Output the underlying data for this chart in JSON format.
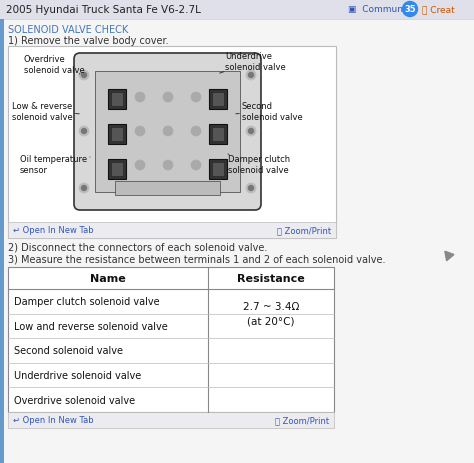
{
  "bg_color": "#f5f5f5",
  "header_bg": "#e8e8f0",
  "header_text": "2005 Hyundai Truck Santa Fe V6-2.7L",
  "section_title": "SOLENOID VALVE CHECK",
  "section_title_color": "#4477bb",
  "step1_text": "1) Remove the valve body cover.",
  "step2_text": "2) Disconnect the connectors of each solenoid valve.",
  "step3_text": "3) Measure the resistance between terminals 1 and 2 of each solenoid valve.",
  "table_names": [
    "Damper clutch solenoid valve",
    "Low and reverse solenoid valve",
    "Second solenoid valve",
    "Underdrive solenoid valve",
    "Overdrive solenoid valve"
  ],
  "table_resistance_line1": "2.7 ~ 3.4Ω",
  "table_resistance_line2": "(at 20°C)",
  "community_count": "35"
}
